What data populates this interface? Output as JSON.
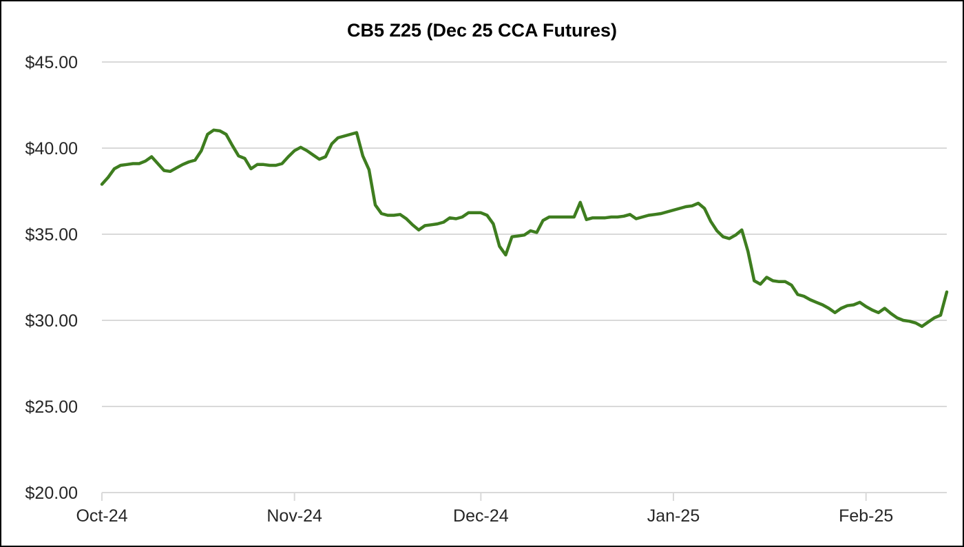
{
  "chart_data": {
    "type": "line",
    "title": "CB5 Z25 (Dec 25 CCA Futures)",
    "xlabel": "",
    "ylabel": "",
    "ylim": [
      20,
      45
    ],
    "grid": "horizontal",
    "legend": "none",
    "colors": {
      "line": "#3e7d1f",
      "gridline": "#d9d9d9",
      "axis": "#d9d9d9",
      "tick_text": "#262626",
      "title_text": "#000000",
      "background": "#ffffff",
      "border": "#000000"
    },
    "y_ticks": [
      {
        "value": 45,
        "label": "$45.00"
      },
      {
        "value": 40,
        "label": "$40.00"
      },
      {
        "value": 35,
        "label": "$35.00"
      },
      {
        "value": 30,
        "label": "$30.00"
      },
      {
        "value": 25,
        "label": "$25.00"
      },
      {
        "value": 20,
        "label": "$20.00"
      }
    ],
    "x_ticks": [
      {
        "label": "Oct-24",
        "day_index": 0
      },
      {
        "label": "Nov-24",
        "day_index": 31
      },
      {
        "label": "Dec-24",
        "day_index": 61
      },
      {
        "label": "Jan-25",
        "day_index": 92
      },
      {
        "label": "Feb-25",
        "day_index": 123
      }
    ],
    "series": [
      {
        "name": "CB5 Z25 (Dec 25 CCA Futures)",
        "frequency": "daily",
        "start_date": "2024-10-01",
        "end_date": "2025-02-14",
        "unit": "USD",
        "values": [
          37.9,
          38.3,
          38.8,
          39.0,
          39.05,
          39.1,
          39.1,
          39.25,
          39.5,
          39.1,
          38.7,
          38.65,
          38.85,
          39.05,
          39.2,
          39.3,
          39.85,
          40.8,
          41.05,
          41.0,
          40.8,
          40.15,
          39.55,
          39.4,
          38.8,
          39.05,
          39.05,
          39.0,
          39.0,
          39.1,
          39.5,
          39.85,
          40.05,
          39.85,
          39.6,
          39.35,
          39.5,
          40.25,
          40.6,
          40.7,
          40.8,
          40.9,
          39.55,
          38.75,
          36.7,
          36.2,
          36.1,
          36.1,
          36.15,
          35.9,
          35.55,
          35.25,
          35.5,
          35.55,
          35.6,
          35.7,
          35.95,
          35.9,
          36.0,
          36.25,
          36.25,
          36.25,
          36.1,
          35.6,
          34.3,
          33.8,
          34.85,
          34.9,
          34.95,
          35.2,
          35.1,
          35.8,
          36.0,
          36.0,
          36.0,
          36.0,
          36.0,
          36.85,
          35.85,
          35.95,
          35.95,
          35.95,
          36.0,
          36.0,
          36.05,
          36.15,
          35.9,
          36.0,
          36.1,
          36.15,
          36.2,
          36.3,
          36.4,
          36.5,
          36.6,
          36.65,
          36.8,
          36.5,
          35.75,
          35.2,
          34.85,
          34.75,
          34.95,
          35.25,
          34.0,
          32.3,
          32.1,
          32.5,
          32.3,
          32.25,
          32.25,
          32.05,
          31.5,
          31.4,
          31.2,
          31.05,
          30.9,
          30.7,
          30.45,
          30.7,
          30.85,
          30.9,
          31.05,
          30.8,
          30.6,
          30.45,
          30.7,
          30.4,
          30.15,
          30.0,
          29.95,
          29.85,
          29.65,
          29.9,
          30.15,
          30.3,
          31.65
        ]
      }
    ]
  }
}
